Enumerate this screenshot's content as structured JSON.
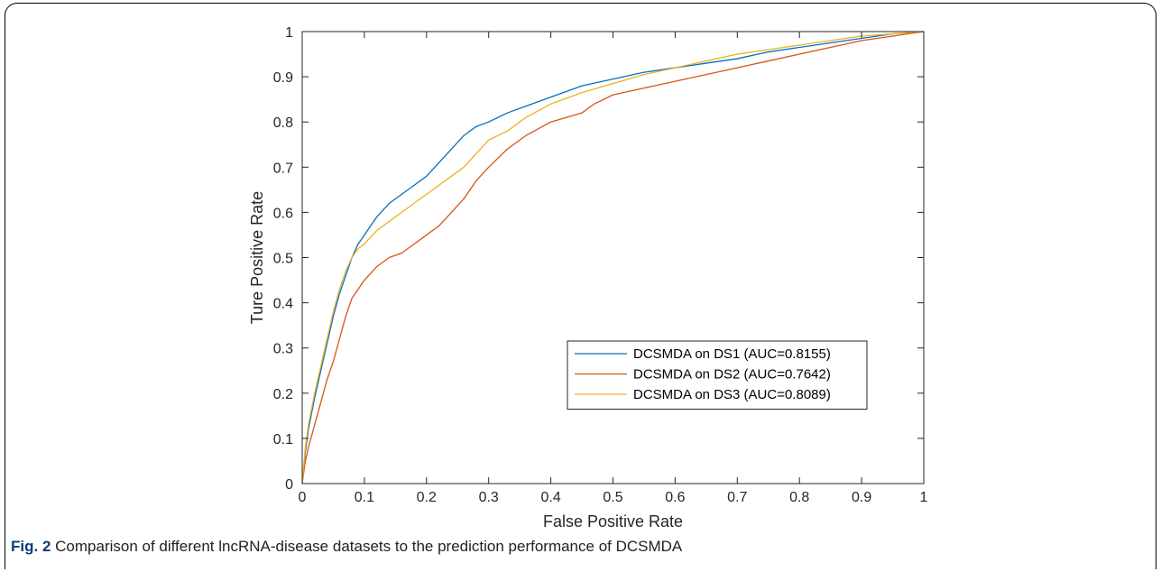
{
  "caption": {
    "label": "Fig. 2",
    "text": "Comparison of different lncRNA-disease datasets to the prediction performance of DCSMDA"
  },
  "chart_data": {
    "type": "line",
    "title": "",
    "xlabel": "False Positive Rate",
    "ylabel": "Ture Positive Rate",
    "xlim": [
      0,
      1
    ],
    "ylim": [
      0,
      1
    ],
    "xticks": [
      "0",
      "0.1",
      "0.2",
      "0.3",
      "0.4",
      "0.5",
      "0.6",
      "0.7",
      "0.8",
      "0.9",
      "1"
    ],
    "yticks": [
      "0",
      "0.1",
      "0.2",
      "0.3",
      "0.4",
      "0.5",
      "0.6",
      "0.7",
      "0.8",
      "0.9",
      "1"
    ],
    "grid": false,
    "legend_position": "lower-right",
    "series": [
      {
        "name": "DCSMDA on DS1 (AUC=0.8155)",
        "color": "#0072BD",
        "x": [
          0,
          0.005,
          0.01,
          0.02,
          0.03,
          0.04,
          0.05,
          0.06,
          0.07,
          0.08,
          0.09,
          0.1,
          0.12,
          0.14,
          0.16,
          0.18,
          0.2,
          0.22,
          0.24,
          0.26,
          0.28,
          0.3,
          0.33,
          0.36,
          0.4,
          0.45,
          0.5,
          0.55,
          0.6,
          0.65,
          0.7,
          0.75,
          0.8,
          0.85,
          0.9,
          0.95,
          1.0
        ],
        "y": [
          0,
          0.07,
          0.12,
          0.19,
          0.25,
          0.31,
          0.37,
          0.42,
          0.46,
          0.5,
          0.53,
          0.55,
          0.59,
          0.62,
          0.64,
          0.66,
          0.68,
          0.71,
          0.74,
          0.77,
          0.79,
          0.8,
          0.82,
          0.835,
          0.855,
          0.88,
          0.895,
          0.91,
          0.92,
          0.93,
          0.94,
          0.955,
          0.965,
          0.975,
          0.985,
          0.995,
          1.0
        ]
      },
      {
        "name": "DCSMDA on DS2 (AUC=0.7642)",
        "color": "#D95319",
        "x": [
          0,
          0.005,
          0.01,
          0.02,
          0.03,
          0.04,
          0.05,
          0.06,
          0.07,
          0.08,
          0.09,
          0.1,
          0.12,
          0.14,
          0.16,
          0.18,
          0.2,
          0.22,
          0.24,
          0.26,
          0.28,
          0.3,
          0.33,
          0.36,
          0.4,
          0.45,
          0.47,
          0.5,
          0.55,
          0.6,
          0.65,
          0.7,
          0.75,
          0.8,
          0.85,
          0.9,
          0.95,
          1.0
        ],
        "y": [
          0,
          0.05,
          0.08,
          0.13,
          0.18,
          0.23,
          0.27,
          0.32,
          0.37,
          0.41,
          0.43,
          0.45,
          0.48,
          0.5,
          0.51,
          0.53,
          0.55,
          0.57,
          0.6,
          0.63,
          0.67,
          0.7,
          0.74,
          0.77,
          0.8,
          0.82,
          0.84,
          0.86,
          0.875,
          0.89,
          0.905,
          0.92,
          0.935,
          0.95,
          0.965,
          0.98,
          0.99,
          1.0
        ]
      },
      {
        "name": "DCSMDA on DS3 (AUC=0.8089)",
        "color": "#EDB120",
        "x": [
          0,
          0.005,
          0.01,
          0.02,
          0.03,
          0.04,
          0.05,
          0.06,
          0.07,
          0.08,
          0.09,
          0.1,
          0.12,
          0.14,
          0.16,
          0.18,
          0.2,
          0.22,
          0.24,
          0.26,
          0.28,
          0.3,
          0.33,
          0.36,
          0.4,
          0.45,
          0.5,
          0.55,
          0.6,
          0.65,
          0.7,
          0.75,
          0.8,
          0.85,
          0.9,
          0.95,
          1.0
        ],
        "y": [
          0,
          0.08,
          0.13,
          0.2,
          0.26,
          0.32,
          0.38,
          0.43,
          0.47,
          0.5,
          0.52,
          0.53,
          0.56,
          0.58,
          0.6,
          0.62,
          0.64,
          0.66,
          0.68,
          0.7,
          0.73,
          0.76,
          0.78,
          0.81,
          0.84,
          0.865,
          0.885,
          0.905,
          0.92,
          0.935,
          0.95,
          0.96,
          0.97,
          0.98,
          0.99,
          0.995,
          1.0
        ]
      }
    ]
  }
}
